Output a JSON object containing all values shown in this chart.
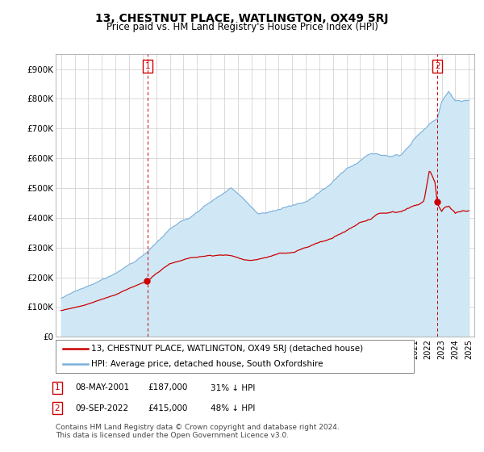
{
  "title": "13, CHESTNUT PLACE, WATLINGTON, OX49 5RJ",
  "subtitle": "Price paid vs. HM Land Registry's House Price Index (HPI)",
  "footer": "Contains HM Land Registry data © Crown copyright and database right 2024.\nThis data is licensed under the Open Government Licence v3.0.",
  "legend_label_red": "13, CHESTNUT PLACE, WATLINGTON, OX49 5RJ (detached house)",
  "legend_label_blue": "HPI: Average price, detached house, South Oxfordshire",
  "annotation1": {
    "num": "1",
    "date": "08-MAY-2001",
    "price": "£187,000",
    "note": "31% ↓ HPI"
  },
  "annotation2": {
    "num": "2",
    "date": "09-SEP-2022",
    "price": "£415,000",
    "note": "48% ↓ HPI"
  },
  "ylim": [
    0,
    950000
  ],
  "yticks": [
    0,
    100000,
    200000,
    300000,
    400000,
    500000,
    600000,
    700000,
    800000,
    900000
  ],
  "ytick_labels": [
    "£0",
    "£100K",
    "£200K",
    "£300K",
    "£400K",
    "£500K",
    "£600K",
    "£700K",
    "£800K",
    "£900K"
  ],
  "red_color": "#cc0000",
  "blue_color": "#7aafdb",
  "blue_fill_color": "#d0e8f5",
  "background_color": "#ffffff",
  "grid_color": "#cccccc",
  "annotation_box_color": "#cc0000",
  "title_fontsize": 10,
  "subtitle_fontsize": 8.5,
  "axis_fontsize": 7.5,
  "legend_fontsize": 7.5,
  "footer_fontsize": 6.5,
  "t1": 2001.36,
  "t2": 2022.69
}
